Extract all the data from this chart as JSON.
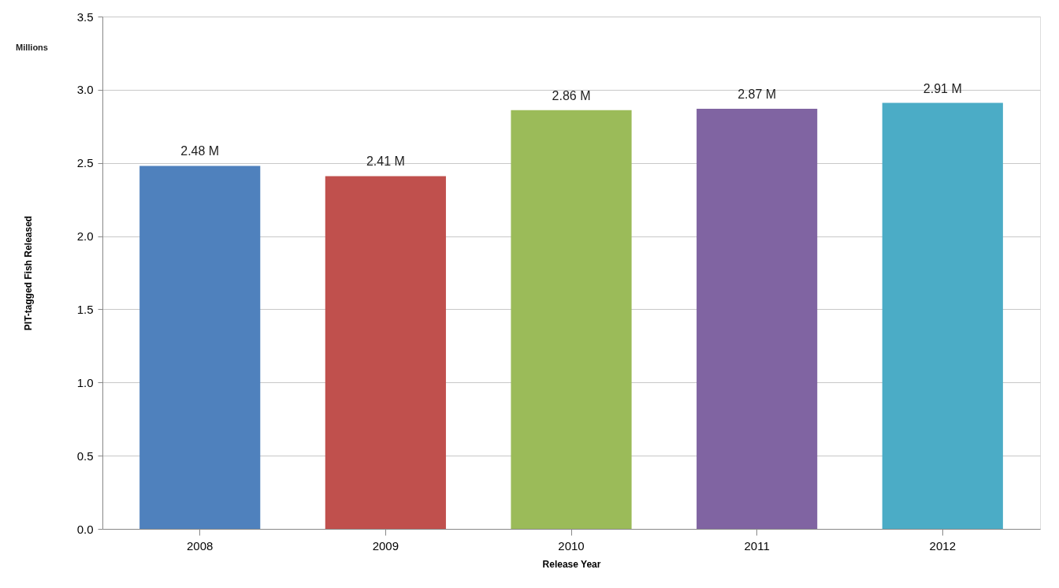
{
  "chart_data": {
    "type": "bar",
    "xlabel": "Release Year",
    "ylabel": "PIT-tagged Fish Released",
    "annotations": [
      "Millions"
    ],
    "categories": [
      "2008",
      "2009",
      "2010",
      "2011",
      "2012"
    ],
    "values": [
      2.48,
      2.41,
      2.86,
      2.87,
      2.91
    ],
    "value_labels": [
      "2.48 M",
      "2.41 M",
      "2.86 M",
      "2.87 M",
      "2.91 M"
    ],
    "colors": [
      "#4f81bd",
      "#c0504d",
      "#9bbb59",
      "#8064a2",
      "#4bacc6"
    ],
    "ylim": [
      0,
      3.5
    ],
    "yticks": [
      {
        "value": 0,
        "label": "0.0"
      },
      {
        "value": 0.5,
        "label": "0.5"
      },
      {
        "value": 1,
        "label": "1.0"
      },
      {
        "value": 1.5,
        "label": "1.5"
      },
      {
        "value": 2,
        "label": "2.0"
      },
      {
        "value": 2.5,
        "label": "2.5"
      },
      {
        "value": 3,
        "label": "3.0"
      },
      {
        "value": 3.5,
        "label": "3.5"
      }
    ],
    "grid": "y",
    "legend": false
  }
}
